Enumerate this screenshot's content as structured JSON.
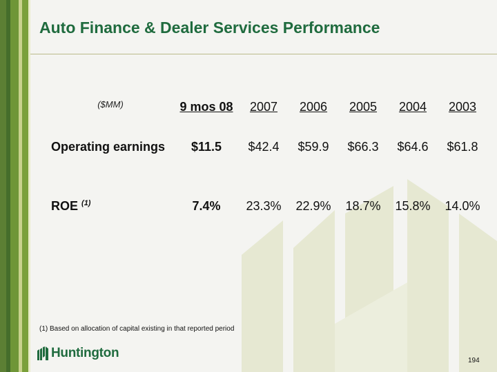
{
  "title": "Auto Finance  & Dealer Services Performance",
  "table": {
    "unit_label": "($MM)",
    "columns": [
      "9 mos 08",
      "2007",
      "2006",
      "2005",
      "2004",
      "2003"
    ],
    "rows": [
      {
        "label": "Operating earnings",
        "label_sup": "",
        "values": [
          "$11.5",
          "$42.4",
          "$59.9",
          "$66.3",
          "$64.6",
          "$61.8"
        ]
      },
      {
        "label": "ROE",
        "label_sup": "(1)",
        "values": [
          "7.4%",
          "23.3%",
          "22.9%",
          "18.7%",
          "15.8%",
          "14.0%"
        ]
      }
    ]
  },
  "footnote": "(1)  Based on allocation of capital existing in that reported period",
  "logo_text": "Huntington",
  "page_number": "194",
  "colors": {
    "title_green": "#1f6b3e",
    "stripe_dark": "#3f6b2a",
    "stripe_light": "#7aa03a",
    "watermark": "#e6e8d2"
  }
}
